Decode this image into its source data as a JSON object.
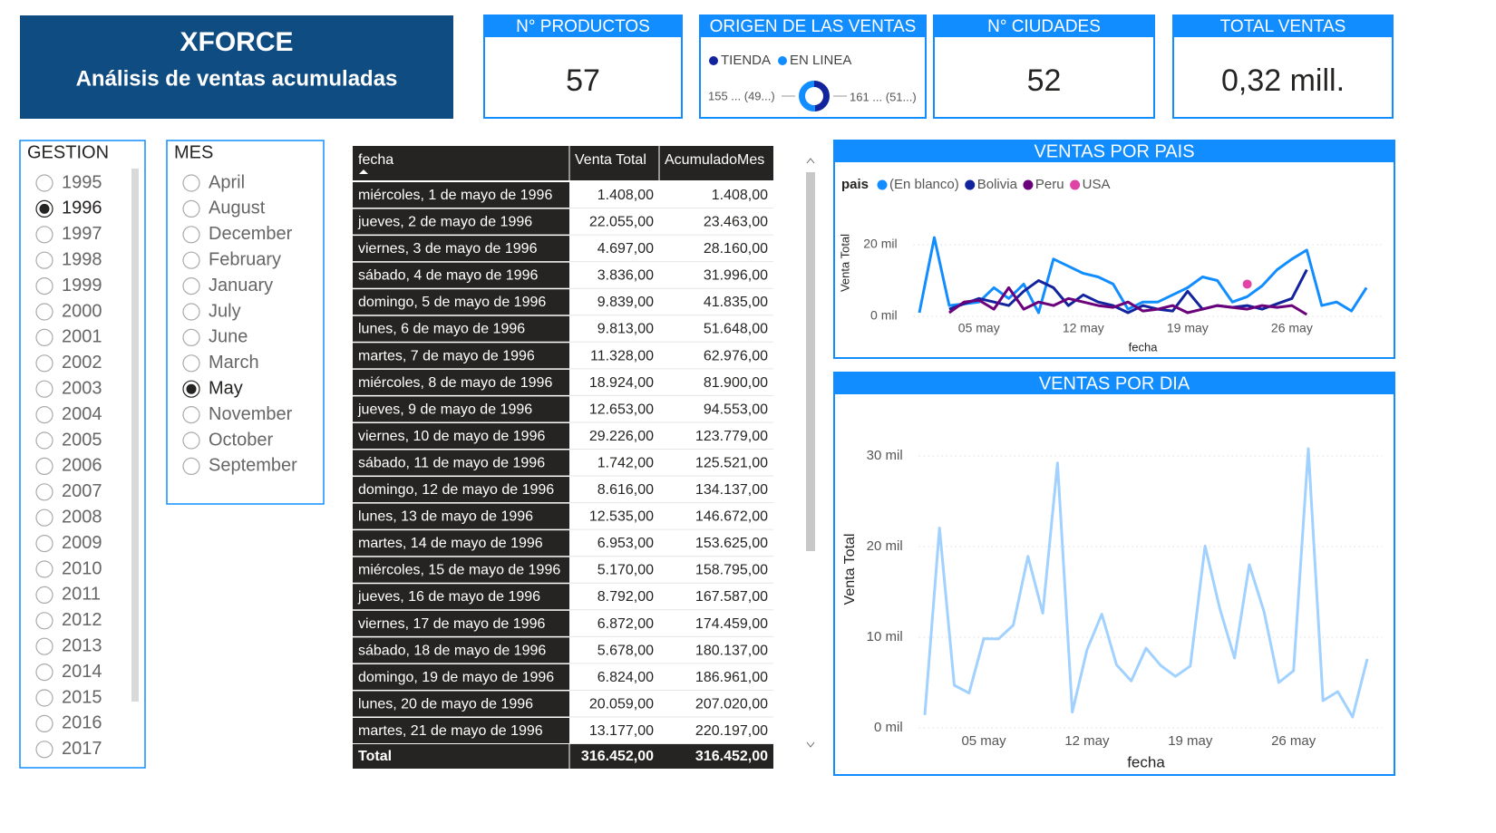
{
  "header": {
    "title": "XFORCE",
    "subtitle": "Análisis de ventas acumuladas"
  },
  "kpis": [
    {
      "title": "N° PRODUCTOS",
      "value": 57
    },
    {
      "title": "N° CIUDADES",
      "value": 52
    },
    {
      "title": "TOTAL VENTAS",
      "value": "0,32 mill."
    }
  ],
  "origin": {
    "title": "ORIGEN DE LAS VENTAS",
    "segments": [
      {
        "name": "TIENDA",
        "color": "#12239e",
        "value": 49,
        "label": "155 ... (49...)"
      },
      {
        "name": "EN LINEA",
        "color": "#118dff",
        "value": 51,
        "label": "161 ... (51...)"
      }
    ]
  },
  "slicers": [
    {
      "title": "GESTION",
      "items": [
        "1995",
        "1996",
        "1997",
        "1998",
        "1999",
        "2000",
        "2001",
        "2002",
        "2003",
        "2004",
        "2005",
        "2006",
        "2007",
        "2008",
        "2009",
        "2010",
        "2011",
        "2012",
        "2013",
        "2014",
        "2015",
        "2016",
        "2017"
      ],
      "selected": "1996"
    },
    {
      "title": "MES",
      "items": [
        "April",
        "August",
        "December",
        "February",
        "January",
        "July",
        "June",
        "March",
        "May",
        "November",
        "October",
        "September"
      ],
      "selected": "May"
    }
  ],
  "table": {
    "columns": [
      "fecha",
      "Venta Total",
      "AcumuladoMes"
    ],
    "rows": [
      [
        "miércoles, 1 de mayo de 1996",
        "1.408,00",
        "1.408,00"
      ],
      [
        "jueves, 2 de mayo de 1996",
        "22.055,00",
        "23.463,00"
      ],
      [
        "viernes, 3 de mayo de 1996",
        "4.697,00",
        "28.160,00"
      ],
      [
        "sábado, 4 de mayo de 1996",
        "3.836,00",
        "31.996,00"
      ],
      [
        "domingo, 5 de mayo de 1996",
        "9.839,00",
        "41.835,00"
      ],
      [
        "lunes, 6 de mayo de 1996",
        "9.813,00",
        "51.648,00"
      ],
      [
        "martes, 7 de mayo de 1996",
        "11.328,00",
        "62.976,00"
      ],
      [
        "miércoles, 8 de mayo de 1996",
        "18.924,00",
        "81.900,00"
      ],
      [
        "jueves, 9 de mayo de 1996",
        "12.653,00",
        "94.553,00"
      ],
      [
        "viernes, 10 de mayo de 1996",
        "29.226,00",
        "123.779,00"
      ],
      [
        "sábado, 11 de mayo de 1996",
        "1.742,00",
        "125.521,00"
      ],
      [
        "domingo, 12 de mayo de 1996",
        "8.616,00",
        "134.137,00"
      ],
      [
        "lunes, 13 de mayo de 1996",
        "12.535,00",
        "146.672,00"
      ],
      [
        "martes, 14 de mayo de 1996",
        "6.953,00",
        "153.625,00"
      ],
      [
        "miércoles, 15 de mayo de 1996",
        "5.170,00",
        "158.795,00"
      ],
      [
        "jueves, 16 de mayo de 1996",
        "8.792,00",
        "167.587,00"
      ],
      [
        "viernes, 17 de mayo de 1996",
        "6.872,00",
        "174.459,00"
      ],
      [
        "sábado, 18 de mayo de 1996",
        "5.678,00",
        "180.137,00"
      ],
      [
        "domingo, 19 de mayo de 1996",
        "6.824,00",
        "186.961,00"
      ],
      [
        "lunes, 20 de mayo de 1996",
        "20.059,00",
        "207.020,00"
      ],
      [
        "martes, 21 de mayo de 1996",
        "13.177,00",
        "220.197,00"
      ]
    ],
    "total": [
      "Total",
      "316.452,00",
      "316.452,00"
    ]
  },
  "chart_data": [
    {
      "type": "line",
      "title": "VENTAS POR PAIS",
      "legend_title": "pais",
      "x_label": "fecha",
      "y_label": "Venta Total",
      "x": [
        1,
        2,
        3,
        4,
        5,
        6,
        7,
        8,
        9,
        10,
        11,
        12,
        13,
        14,
        15,
        16,
        17,
        18,
        19,
        20,
        21,
        22,
        23,
        24,
        25,
        26,
        27,
        28,
        29,
        30,
        31
      ],
      "xlim": [
        0,
        32
      ],
      "xticks": [
        {
          "value": 5,
          "label": "05 may"
        },
        {
          "value": 12,
          "label": "12 may"
        },
        {
          "value": 19,
          "label": "19 may"
        },
        {
          "value": 26,
          "label": "26 may"
        }
      ],
      "ylim": [
        -2000,
        24000
      ],
      "yticks": [
        {
          "value": 0,
          "label": "0 mil"
        },
        {
          "value": 20000,
          "label": "20 mil"
        }
      ],
      "grid": true,
      "series": [
        {
          "name": "(En blanco)",
          "color": "#118dff",
          "values": [
            1000,
            22000,
            3000,
            3500,
            4000,
            8000,
            5000,
            9000,
            1000,
            16000,
            14000,
            12000,
            11000,
            9000,
            2000,
            4000,
            4000,
            6000,
            8000,
            11000,
            10000,
            4000,
            5500,
            8500,
            13000,
            16000,
            18500,
            3000,
            4000,
            1500,
            8000
          ]
        },
        {
          "name": "Bolivia",
          "color": "#12239e",
          "values": [
            null,
            null,
            2000,
            3500,
            5000,
            4000,
            3000,
            7000,
            10000,
            8000,
            3000,
            6000,
            4000,
            3000,
            1000,
            3000,
            2000,
            1500,
            7000,
            2000,
            3000,
            2500,
            3000,
            2000,
            3500,
            5000,
            13000,
            null,
            null,
            null,
            null
          ]
        },
        {
          "name": "Peru",
          "color": "#6b007b",
          "values": [
            null,
            null,
            1000,
            4000,
            4500,
            2000,
            8000,
            2000,
            4000,
            3000,
            5000,
            4000,
            3000,
            2500,
            4000,
            1500,
            2000,
            3000,
            1000,
            2000,
            3000,
            2500,
            2000,
            3000,
            2500,
            3000,
            500,
            null,
            null,
            null,
            null
          ]
        },
        {
          "name": "USA",
          "color": "#e044a7",
          "values": [
            null,
            null,
            null,
            null,
            null,
            null,
            null,
            null,
            null,
            null,
            null,
            null,
            null,
            null,
            null,
            null,
            null,
            null,
            null,
            null,
            null,
            null,
            9000,
            null,
            null,
            null,
            null,
            null,
            null,
            null,
            null
          ]
        }
      ]
    },
    {
      "type": "line",
      "title": "VENTAS POR DIA",
      "x_label": "fecha",
      "y_label": "Venta Total",
      "x": [
        1,
        2,
        3,
        4,
        5,
        6,
        7,
        8,
        9,
        10,
        11,
        12,
        13,
        14,
        15,
        16,
        17,
        18,
        19,
        20,
        21,
        22,
        23,
        24,
        25,
        26,
        27,
        28,
        29,
        30,
        31
      ],
      "xlim": [
        0,
        32
      ],
      "xticks": [
        {
          "value": 5,
          "label": "05 may"
        },
        {
          "value": 12,
          "label": "12 may"
        },
        {
          "value": 19,
          "label": "19 may"
        },
        {
          "value": 26,
          "label": "26 may"
        }
      ],
      "ylim": [
        -1500,
        32000
      ],
      "yticks": [
        {
          "value": 0,
          "label": "0 mil"
        },
        {
          "value": 10000,
          "label": "10 mil"
        },
        {
          "value": 20000,
          "label": "20 mil"
        },
        {
          "value": 30000,
          "label": "30 mil"
        }
      ],
      "grid": true,
      "series": [
        {
          "name": "Venta Total",
          "color": "#a0d1ff",
          "values": [
            1408,
            22055,
            4697,
            3836,
            9839,
            9813,
            11328,
            18924,
            12653,
            29226,
            1742,
            8616,
            12535,
            6953,
            5170,
            8792,
            6872,
            5678,
            6824,
            20059,
            13177,
            7700,
            18000,
            12800,
            5000,
            6300,
            30800,
            3000,
            4000,
            1200,
            7600
          ]
        }
      ]
    }
  ]
}
